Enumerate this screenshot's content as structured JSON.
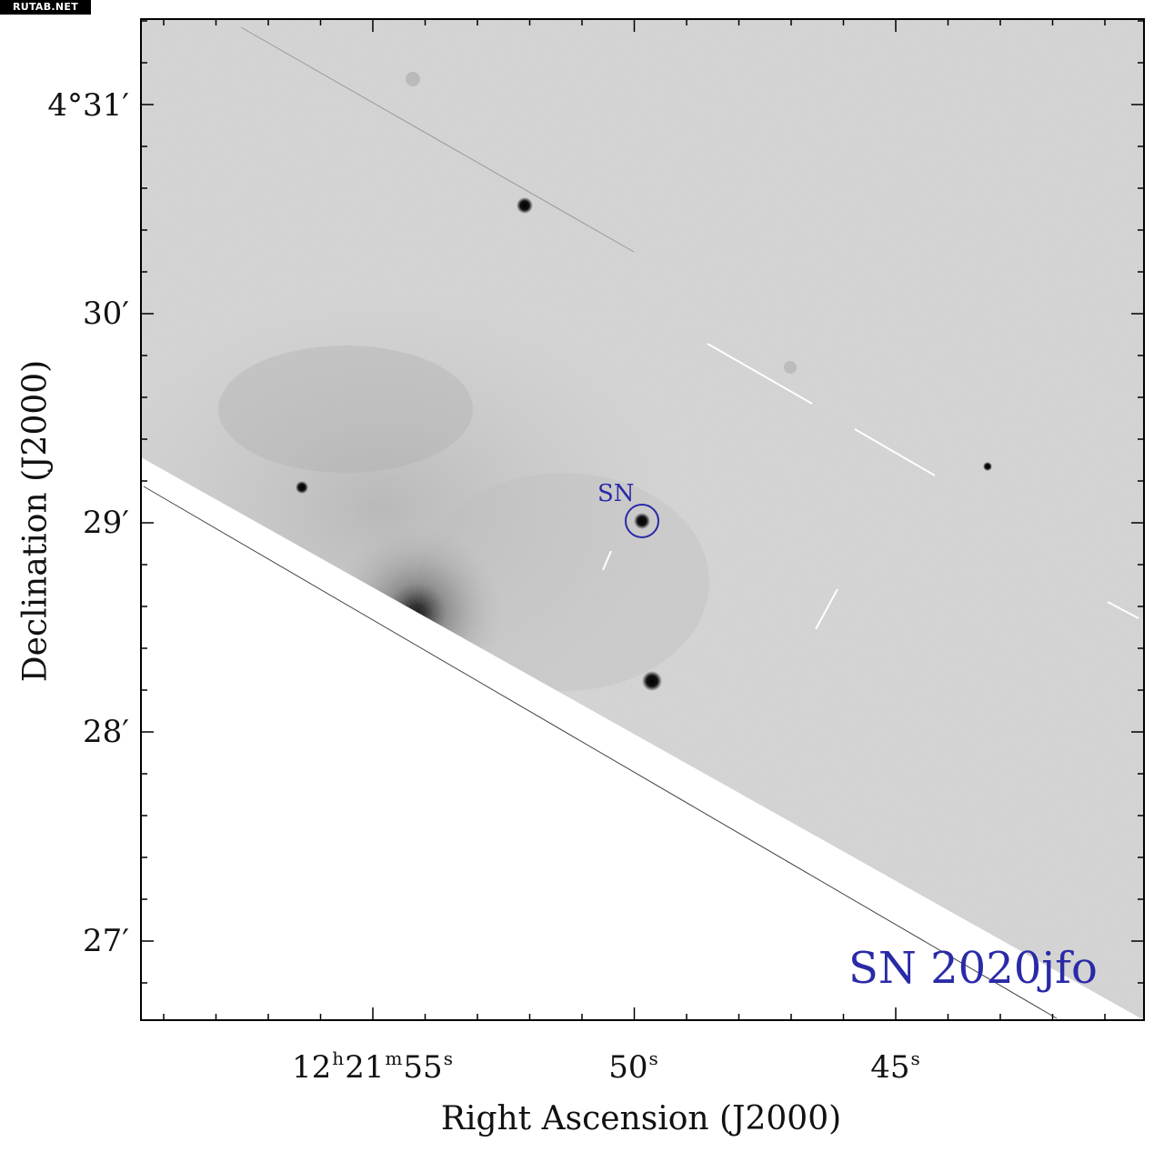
{
  "watermark": "RUTAB.NET",
  "axes": {
    "xlabel": "Right Ascension (J2000)",
    "ylabel": "Declination (J2000)",
    "x_ticks": [
      {
        "h": "12",
        "m": "21",
        "s": "55"
      },
      {
        "s": "50"
      },
      {
        "s": "45"
      }
    ],
    "y_ticks": [
      "4°31′",
      "30′",
      "29′",
      "28′",
      "27′"
    ]
  },
  "annotations": {
    "marker_label": "SN",
    "object_name": "SN 2020jfo",
    "color": "#2a2aa8"
  },
  "image_style": {
    "background": "#d6d6d6",
    "blank_region": "#ffffff",
    "star_color": "#000000"
  }
}
